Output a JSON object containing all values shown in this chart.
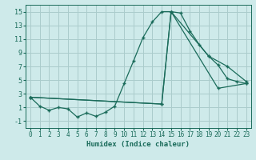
{
  "xlabel": "Humidex (Indice chaleur)",
  "bg_color": "#ceeaea",
  "grid_color": "#aacccc",
  "line_color": "#1a6b5a",
  "xlim": [
    -0.5,
    23.5
  ],
  "ylim": [
    -2.0,
    16.0
  ],
  "xticks": [
    0,
    1,
    2,
    3,
    4,
    5,
    6,
    7,
    8,
    9,
    10,
    11,
    12,
    13,
    14,
    15,
    16,
    17,
    18,
    19,
    20,
    21,
    22,
    23
  ],
  "yticks": [
    -1,
    1,
    3,
    5,
    7,
    9,
    11,
    13,
    15
  ],
  "line1_x": [
    0,
    1,
    2,
    3,
    4,
    5,
    6,
    7,
    8,
    9,
    10,
    11,
    12,
    13,
    14,
    15,
    16,
    17,
    18,
    19,
    20,
    21,
    22,
    23
  ],
  "line1_y": [
    2.5,
    1.2,
    0.6,
    1.0,
    0.8,
    -0.4,
    0.2,
    -0.3,
    0.3,
    1.2,
    4.5,
    7.8,
    11.2,
    13.5,
    15.0,
    15.0,
    14.8,
    12.2,
    10.2,
    8.5,
    7.2,
    5.2,
    4.8,
    4.5
  ],
  "line2_x": [
    0,
    14,
    15,
    19,
    21,
    23
  ],
  "line2_y": [
    2.5,
    1.5,
    15.0,
    8.5,
    7.0,
    4.8
  ],
  "line3_x": [
    0,
    14,
    15,
    20,
    23
  ],
  "line3_y": [
    2.5,
    1.5,
    15.0,
    3.8,
    4.5
  ]
}
